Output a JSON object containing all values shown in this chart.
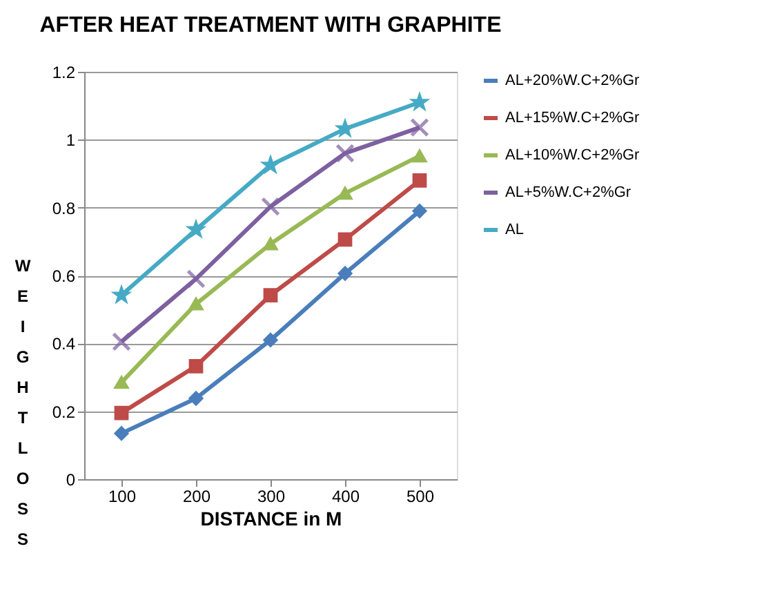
{
  "chart_data": {
    "type": "line",
    "title": "AFTER HEAT TREATMENT WITH GRAPHITE",
    "xlabel": "DISTANCE in M",
    "ylabel": "WEIGHT LOSS",
    "categories": [
      "100",
      "200",
      "300",
      "400",
      "500"
    ],
    "series": [
      {
        "name": "AL+20%W.C+2%Gr",
        "color": "#4a7ebb",
        "marker": "diamond",
        "values": [
          0.135,
          0.238,
          0.41,
          0.606,
          0.79
        ]
      },
      {
        "name": "AL+15%W.C+2%Gr",
        "color": "#be4b48",
        "marker": "square",
        "values": [
          0.195,
          0.333,
          0.542,
          0.706,
          0.88
        ]
      },
      {
        "name": "AL+10%W.C+2%Gr",
        "color": "#98b954",
        "marker": "triangle",
        "values": [
          0.285,
          0.516,
          0.693,
          0.842,
          0.952
        ]
      },
      {
        "name": "AL+5%W.C+2%Gr",
        "color": "#7d60a0",
        "marker": "cross",
        "values": [
          0.405,
          0.59,
          0.803,
          0.96,
          1.036
        ]
      },
      {
        "name": "AL",
        "color": "#46aac5",
        "marker": "star",
        "values": [
          0.542,
          0.735,
          0.925,
          1.032,
          1.11
        ]
      }
    ],
    "ylim": [
      0,
      1.2
    ],
    "yticks": [
      0,
      0.2,
      0.4,
      0.6,
      0.8,
      1,
      1.2
    ],
    "grid": "y",
    "legend": "right",
    "line_style": "solid"
  }
}
